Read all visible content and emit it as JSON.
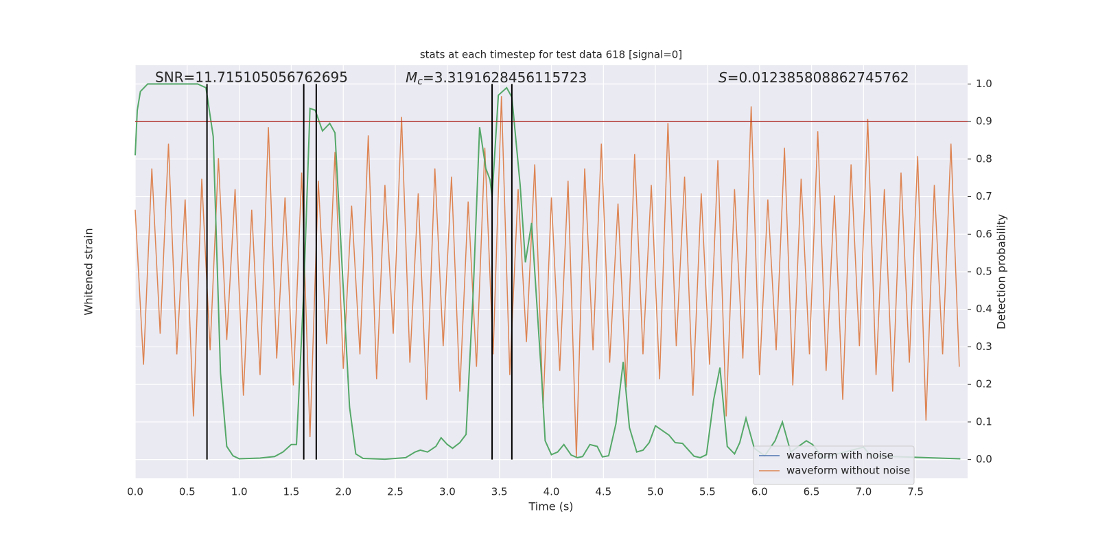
{
  "chart_data": {
    "type": "line",
    "title": "stats at each timestep for test data 618 [signal=0]",
    "xlabel": "Time (s)",
    "ylabel": "Whitened strain",
    "y2label": "Detection probability",
    "annotations": [
      {
        "text": "SNR=11.715105056762695"
      },
      {
        "symbol": "M",
        "sub": "c",
        "text": "=3.3191628456115723"
      },
      {
        "symbol": "S",
        "text": "=0.012385808862745762"
      }
    ],
    "xlim": [
      0,
      8
    ],
    "xticks": [
      {
        "value": 0,
        "label": "0.0"
      },
      {
        "value": 0.5,
        "label": "0.5"
      },
      {
        "value": 1,
        "label": "1.0"
      },
      {
        "value": 1.5,
        "label": "1.5"
      },
      {
        "value": 2,
        "label": "2.0"
      },
      {
        "value": 2.5,
        "label": "2.5"
      },
      {
        "value": 3,
        "label": "3.0"
      },
      {
        "value": 3.5,
        "label": "3.5"
      },
      {
        "value": 4,
        "label": "4.0"
      },
      {
        "value": 4.5,
        "label": "4.5"
      },
      {
        "value": 5,
        "label": "5.0"
      },
      {
        "value": 5.5,
        "label": "5.5"
      },
      {
        "value": 6,
        "label": "6.0"
      },
      {
        "value": 6.5,
        "label": "6.5"
      },
      {
        "value": 7,
        "label": "7.0"
      },
      {
        "value": 7.5,
        "label": "7.5"
      }
    ],
    "ylim": [
      -1,
      1
    ],
    "y2lim": [
      -0.05,
      1.05
    ],
    "y2ticks": [
      {
        "value": 0,
        "label": "0.0"
      },
      {
        "value": 0.1,
        "label": "0.1"
      },
      {
        "value": 0.2,
        "label": "0.2"
      },
      {
        "value": 0.3,
        "label": "0.3"
      },
      {
        "value": 0.4,
        "label": "0.4"
      },
      {
        "value": 0.5,
        "label": "0.5"
      },
      {
        "value": 0.6,
        "label": "0.6"
      },
      {
        "value": 0.7,
        "label": "0.7"
      },
      {
        "value": 0.8,
        "label": "0.8"
      },
      {
        "value": 0.9,
        "label": "0.9"
      },
      {
        "value": 1,
        "label": "1.0"
      }
    ],
    "grid": true,
    "legend": "lower right",
    "series": [
      {
        "name": "waveform with noise",
        "color": "#4c72b0"
      },
      {
        "name": "waveform without noise",
        "color": "#dd8452",
        "x": [
          0,
          0.08,
          0.16,
          0.24,
          0.32,
          0.4,
          0.48,
          0.56,
          0.64,
          0.72,
          0.8,
          0.88,
          0.96,
          1.04,
          1.12,
          1.2,
          1.28,
          1.36,
          1.44,
          1.52,
          1.6,
          1.68,
          1.76,
          1.84,
          1.92,
          2,
          2.08,
          2.16,
          2.24,
          2.32,
          2.4,
          2.48,
          2.56,
          2.64,
          2.72,
          2.8,
          2.88,
          2.96,
          3.04,
          3.12,
          3.2,
          3.28,
          3.36,
          3.44,
          3.52,
          3.6,
          3.68,
          3.76,
          3.84,
          3.92,
          4,
          4.08,
          4.16,
          4.24,
          4.32,
          4.4,
          4.48,
          4.56,
          4.64,
          4.72,
          4.8,
          4.88,
          4.96,
          5.04,
          5.12,
          5.2,
          5.28,
          5.36,
          5.44,
          5.52,
          5.6,
          5.68,
          5.76,
          5.84,
          5.92,
          6,
          6.08,
          6.16,
          6.24,
          6.32,
          6.4,
          6.48,
          6.56,
          6.64,
          6.72,
          6.8,
          6.88,
          6.96,
          7.04,
          7.12,
          7.2,
          7.28,
          7.36,
          7.44,
          7.52,
          7.6,
          7.68,
          7.76,
          7.84,
          7.92
        ],
        "values": [
          0.3,
          -0.45,
          0.5,
          -0.3,
          0.62,
          -0.4,
          0.35,
          -0.7,
          0.45,
          -0.38,
          0.55,
          -0.33,
          0.4,
          -0.6,
          0.3,
          -0.5,
          0.7,
          -0.42,
          0.36,
          -0.55,
          0.48,
          -0.8,
          0.44,
          -0.35,
          0.58,
          -0.47,
          0.32,
          -0.4,
          0.66,
          -0.52,
          0.42,
          -0.3,
          0.75,
          -0.44,
          0.38,
          -0.62,
          0.5,
          -0.36,
          0.46,
          -0.58,
          0.34,
          -0.46,
          0.6,
          -0.4,
          0.85,
          -0.5,
          0.4,
          -0.34,
          0.52,
          -0.66,
          0.36,
          -0.48,
          0.44,
          -0.9,
          0.5,
          -0.38,
          0.62,
          -0.44,
          0.33,
          -0.56,
          0.57,
          -0.4,
          0.42,
          -0.52,
          0.72,
          -0.36,
          0.46,
          -0.6,
          0.38,
          -0.45,
          0.54,
          -0.7,
          0.4,
          -0.42,
          0.8,
          -0.5,
          0.35,
          -0.38,
          0.6,
          -0.55,
          0.45,
          -0.4,
          0.68,
          -0.48,
          0.37,
          -0.62,
          0.52,
          -0.36,
          0.74,
          -0.5,
          0.4,
          -0.58,
          0.48,
          -0.44,
          0.56,
          -0.72,
          0.42,
          -0.4,
          0.62,
          -0.46
        ]
      },
      {
        "color": "#55a868",
        "axis": "y2",
        "x": [
          0,
          0.02,
          0.05,
          0.12,
          0.6,
          0.68,
          0.75,
          0.82,
          0.88,
          0.94,
          1,
          1.2,
          1.34,
          1.42,
          1.5,
          1.55,
          1.62,
          1.68,
          1.73,
          1.8,
          1.87,
          1.92,
          2,
          2.06,
          2.12,
          2.19,
          2.4,
          2.6,
          2.69,
          2.74,
          2.81,
          2.89,
          2.94,
          3,
          3.05,
          3.12,
          3.18,
          3.25,
          3.31,
          3.37,
          3.41,
          3.43,
          3.49,
          3.57,
          3.62,
          3.7,
          3.75,
          3.81,
          3.91,
          3.94,
          4,
          4.06,
          4.12,
          4.19,
          4.25,
          4.3,
          4.37,
          4.44,
          4.49,
          4.55,
          4.62,
          4.69,
          4.75,
          4.82,
          4.88,
          4.94,
          5,
          5.13,
          5.19,
          5.26,
          5.37,
          5.43,
          5.49,
          5.56,
          5.62,
          5.69,
          5.76,
          5.81,
          5.87,
          5.95,
          6.05,
          6.15,
          6.22,
          6.3,
          6.45,
          6.51,
          6.61,
          7,
          7.07,
          7.93
        ],
        "values": [
          0.81,
          0.93,
          0.98,
          1,
          1,
          0.99,
          0.86,
          0.23,
          0.035,
          0.01,
          0.002,
          0.004,
          0.008,
          0.02,
          0.04,
          0.04,
          0.45,
          0.935,
          0.93,
          0.875,
          0.895,
          0.87,
          0.455,
          0.14,
          0.015,
          0.003,
          0.001,
          0.005,
          0.02,
          0.025,
          0.02,
          0.035,
          0.058,
          0.04,
          0.03,
          0.045,
          0.067,
          0.455,
          0.885,
          0.775,
          0.745,
          0.7,
          0.97,
          0.99,
          0.965,
          0.73,
          0.525,
          0.63,
          0.2,
          0.05,
          0.013,
          0.02,
          0.04,
          0.012,
          0.005,
          0.008,
          0.04,
          0.035,
          0.007,
          0.01,
          0.095,
          0.26,
          0.085,
          0.02,
          0.025,
          0.045,
          0.09,
          0.065,
          0.045,
          0.043,
          0.009,
          0.005,
          0.013,
          0.16,
          0.245,
          0.035,
          0.015,
          0.045,
          0.11,
          0.03,
          0.01,
          0.05,
          0.1,
          0.02,
          0.05,
          0.04,
          0.005,
          0.033,
          0.01,
          0.002
        ]
      }
    ],
    "threshold": {
      "value": 0.9,
      "color": "#b0332e"
    },
    "vlines": {
      "x": [
        0.69,
        1.62,
        1.74,
        3.43,
        3.62
      ],
      "color": "#000000"
    }
  }
}
